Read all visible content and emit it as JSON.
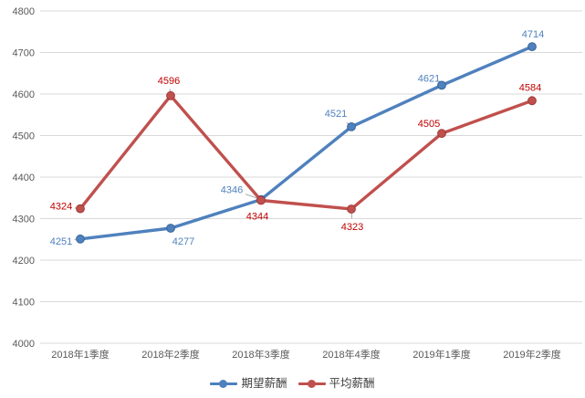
{
  "chart_data": {
    "type": "line",
    "title": "",
    "xlabel": "",
    "ylabel": "",
    "categories": [
      "2018年1季度",
      "2018年2季度",
      "2018年3季度",
      "2018年4季度",
      "2019年1季度",
      "2019年2季度"
    ],
    "series": [
      {
        "name": "期望薪酬",
        "values": [
          4251,
          4277,
          4346,
          4521,
          4621,
          4714
        ],
        "color": "#4F81BD",
        "label_color": "#4F81BD",
        "marker_edge": "#3A6599"
      },
      {
        "name": "平均薪酬",
        "values": [
          4324,
          4596,
          4344,
          4323,
          4505,
          4584
        ],
        "color": "#C0504D",
        "label_color": "#C00000",
        "marker_edge": "#9E3B38"
      }
    ],
    "ylim": [
      4000,
      4800
    ],
    "yticks": [
      4000,
      4100,
      4200,
      4300,
      4400,
      4500,
      4600,
      4700,
      4800
    ],
    "grid": true,
    "legend_position": "bottom",
    "axis_text_color": "#595959",
    "gridline_color": "#D9D9D9",
    "leader_color": "#A6A6A6",
    "label_offsets": [
      [
        [
          -21,
          2
        ],
        [
          14,
          14
        ],
        [
          -32,
          -11
        ],
        [
          -17,
          -15
        ],
        [
          -14,
          -8
        ],
        [
          1,
          -14
        ]
      ],
      [
        [
          -21,
          -3
        ],
        [
          -2,
          -17
        ],
        [
          -4,
          17
        ],
        [
          1,
          19
        ],
        [
          -14,
          -11
        ],
        [
          -2,
          -15
        ]
      ]
    ],
    "label_leaders": [
      [
        true,
        false,
        true,
        true,
        true,
        false
      ],
      [
        true,
        true,
        false,
        true,
        false,
        true
      ]
    ]
  }
}
